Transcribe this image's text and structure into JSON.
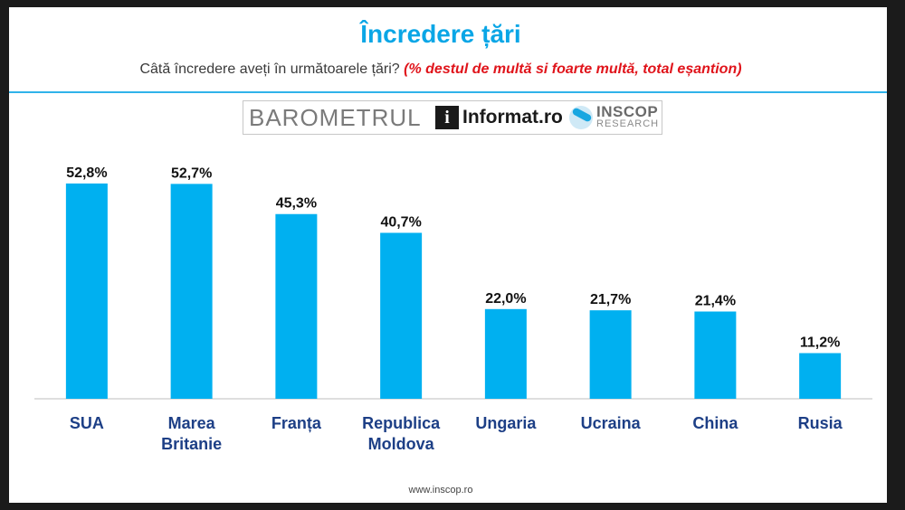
{
  "title": "Încredere țări",
  "subtitle": {
    "question": "Câtă încredere aveți în următoarele țări?",
    "note": "(%  destul de multă si foarte multă,  total eșantion)"
  },
  "banner": {
    "barometer": "BAROMETRUL",
    "logo_letter": "i",
    "informat": "Informat.ro",
    "inscop": "INSCOP",
    "research": "RESEARCH"
  },
  "footer": "www.inscop.ro",
  "colors": {
    "bar": "#00b0f0",
    "title": "#0aa6e6",
    "note": "#e0141b",
    "rule": "#2fb3ea"
  },
  "chart_data": {
    "type": "bar",
    "categories": [
      [
        "SUA"
      ],
      [
        "Marea",
        "Britanie"
      ],
      [
        "Franța"
      ],
      [
        "Republica",
        "Moldova"
      ],
      [
        "Ungaria"
      ],
      [
        "Ucraina"
      ],
      [
        "China"
      ],
      [
        "Rusia"
      ]
    ],
    "values": [
      52.8,
      52.7,
      45.3,
      40.7,
      22.0,
      21.7,
      21.4,
      11.2
    ],
    "labels": [
      "52,8%",
      "52,7%",
      "45,3%",
      "40,7%",
      "22,0%",
      "21,7%",
      "21,4%",
      "11,2%"
    ],
    "ylim": [
      0,
      55
    ],
    "grid": false,
    "legend": "none"
  }
}
